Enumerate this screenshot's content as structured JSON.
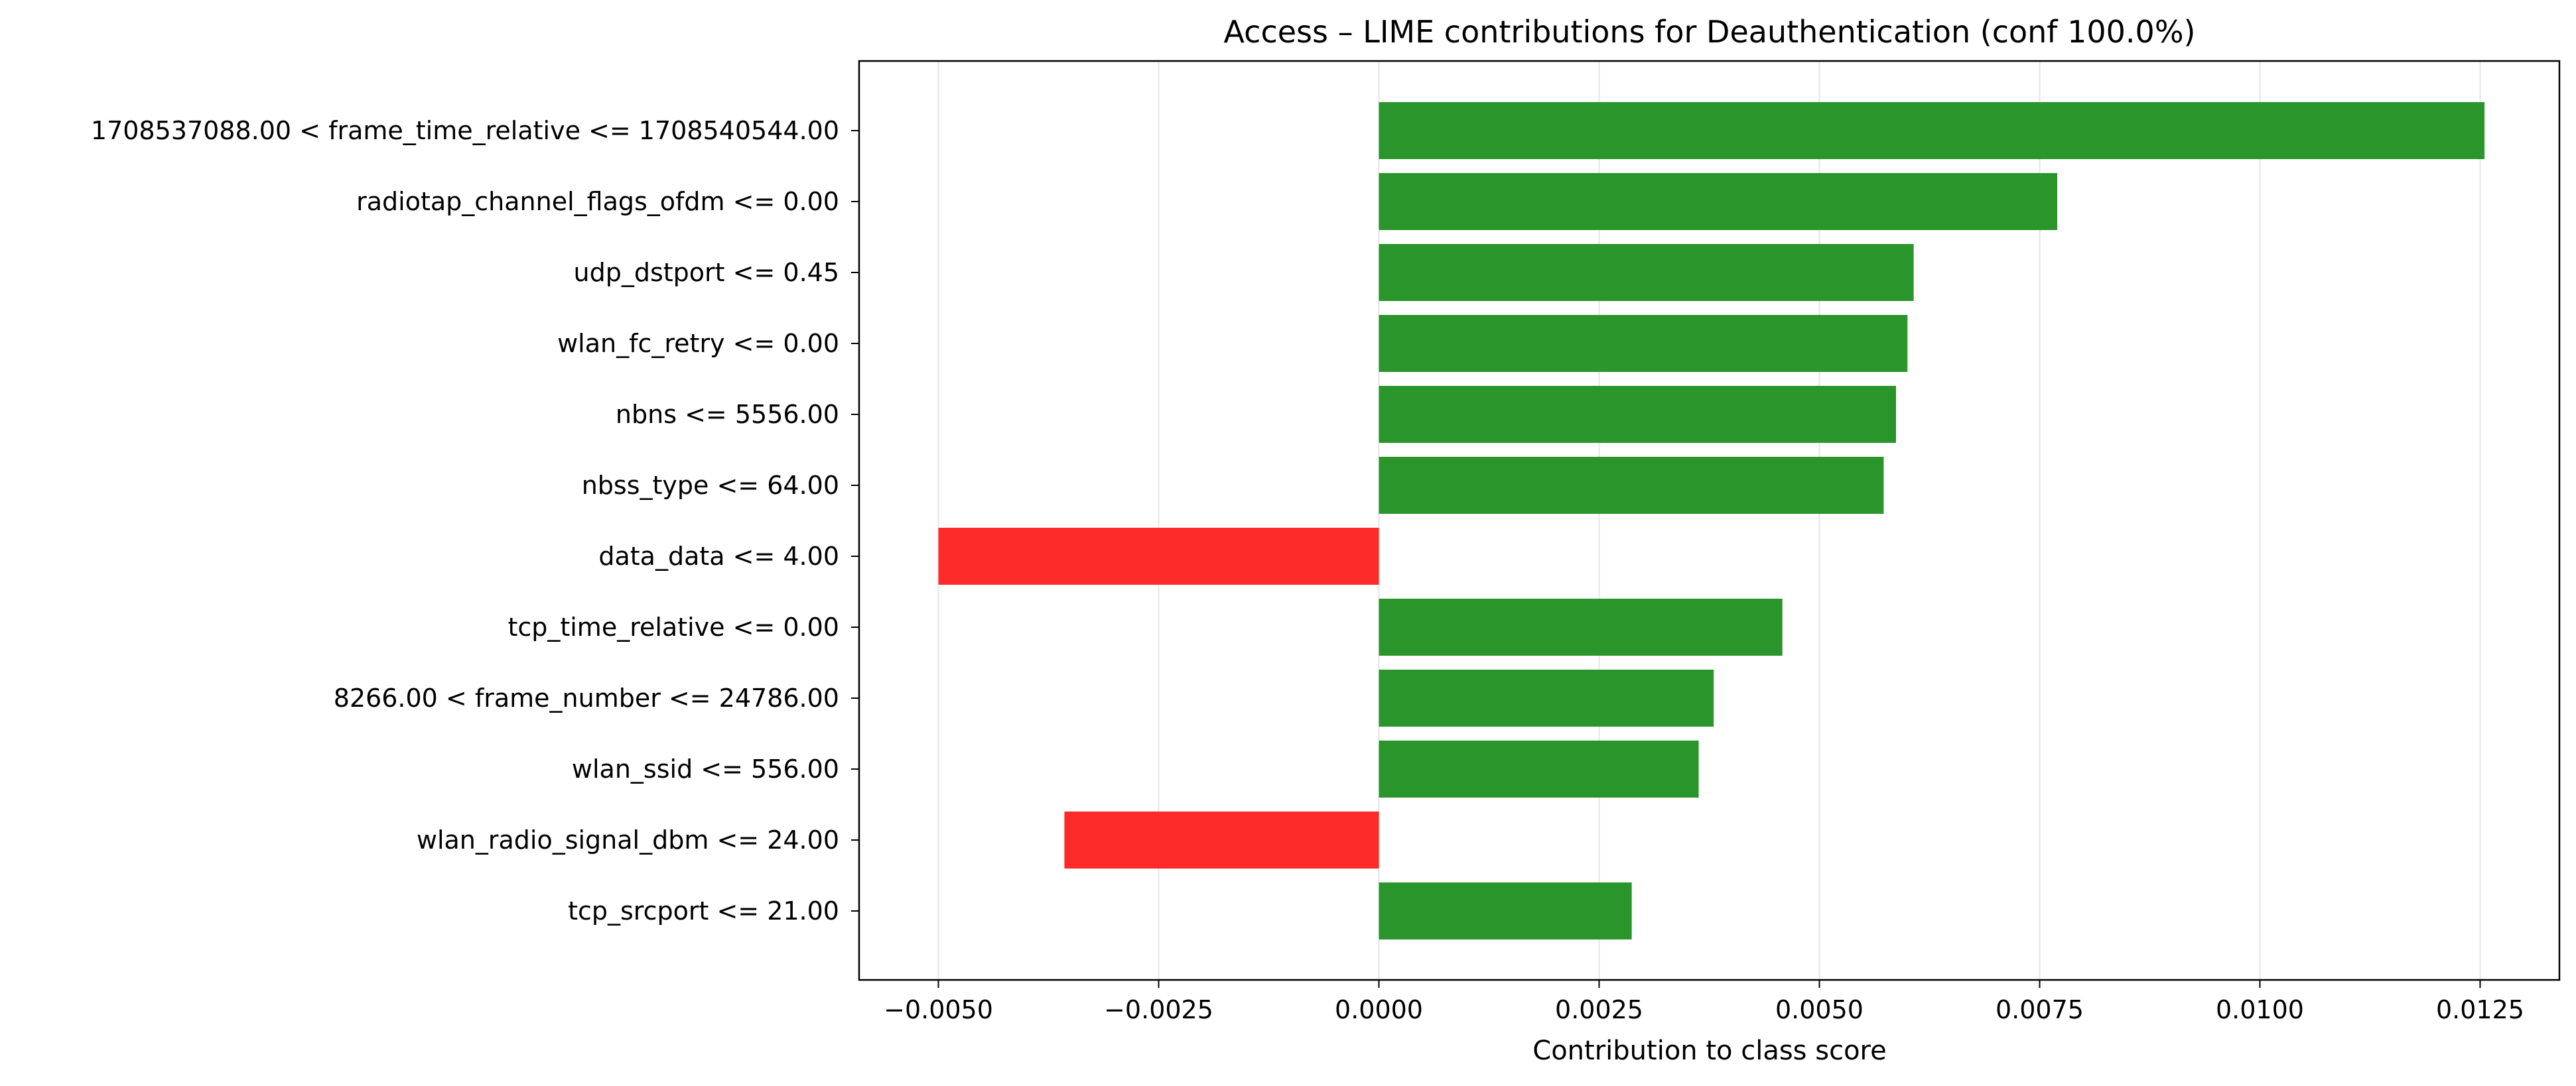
{
  "chart_data": {
    "type": "bar",
    "orientation": "horizontal",
    "title": "Access – LIME contributions for Deauthentication (conf 100.0%)",
    "xlabel": "Contribution to class score",
    "ylabel": "",
    "xlim": [
      -0.0059,
      0.0134
    ],
    "xticks": [
      -0.005,
      -0.0025,
      0.0,
      0.0025,
      0.005,
      0.0075,
      0.01,
      0.0125
    ],
    "xtick_labels": [
      "−0.0050",
      "−0.0025",
      "0.0000",
      "0.0025",
      "0.0050",
      "0.0075",
      "0.0100",
      "0.0125"
    ],
    "grid": "x",
    "legend": "none",
    "categories": [
      "1708537088.00 < frame_time_relative <= 1708540544.00",
      "radiotap_channel_flags_ofdm <= 0.00",
      "udp_dstport <= 0.45",
      "wlan_fc_retry <= 0.00",
      "nbns <= 5556.00",
      "nbss_type <= 64.00",
      "data_data <= 4.00",
      "tcp_time_relative <= 0.00",
      "8266.00 < frame_number <= 24786.00",
      "wlan_ssid <= 556.00",
      "wlan_radio_signal_dbm <= 24.00",
      "tcp_srcport <= 21.00"
    ],
    "values": [
      0.01255,
      0.0077,
      0.00607,
      0.006,
      0.00587,
      0.00573,
      -0.005,
      0.00458,
      0.0038,
      0.00363,
      -0.00357,
      0.00287
    ],
    "colors": {
      "positive": "#2a952a",
      "negative": "#fd2a2a",
      "grid": "#e6e6e6",
      "axes": "#000000"
    }
  }
}
